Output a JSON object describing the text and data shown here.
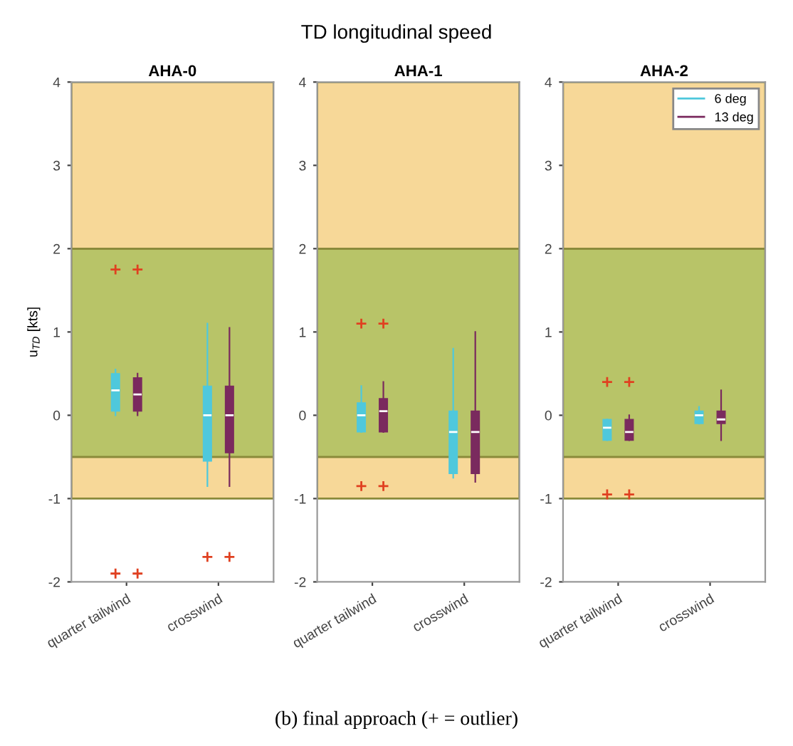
{
  "chart_data": [
    {
      "type": "box",
      "title": "AHA-0",
      "ylabel": "u$_{TD}$ [kts]",
      "annotations": [
        "TD longitudinal speed",
        "(b) final approach (+ = outlier)"
      ],
      "categories": [
        "quarter tailwind",
        "crosswind"
      ],
      "ylim": [
        -2,
        4
      ],
      "yticks": [
        -2,
        -1,
        0,
        1,
        2,
        3,
        4
      ],
      "bands": [
        {
          "axis": "y",
          "from": -1,
          "to": -0.5,
          "color": "#f7d898"
        },
        {
          "axis": "y",
          "from": -0.5,
          "to": 2,
          "color": "#b8c468"
        },
        {
          "axis": "y",
          "from": 2,
          "to": 4,
          "color": "#f7d898"
        }
      ],
      "series": [
        {
          "color": "#4fc8dc",
          "boxes": [
            {
              "low": 0.0,
              "q1": 0.05,
              "median": 0.3,
              "q3": 0.5,
              "high": 0.55,
              "outliers": [
                1.75,
                -1.9
              ]
            },
            {
              "low": -0.85,
              "q1": -0.55,
              "median": 0.0,
              "q3": 0.35,
              "high": 1.1,
              "outliers": [
                -1.7
              ]
            }
          ]
        },
        {
          "color": "#7a2a5e",
          "boxes": [
            {
              "low": 0.0,
              "q1": 0.05,
              "median": 0.25,
              "q3": 0.45,
              "high": 0.5,
              "outliers": [
                1.75,
                -1.9
              ]
            },
            {
              "low": -0.85,
              "q1": -0.45,
              "median": 0.0,
              "q3": 0.35,
              "high": 1.05,
              "outliers": [
                -1.7
              ]
            }
          ]
        }
      ]
    },
    {
      "type": "box",
      "title": "AHA-1",
      "categories": [
        "quarter tailwind",
        "crosswind"
      ],
      "ylim": [
        -2,
        4
      ],
      "yticks": [
        -2,
        -1,
        0,
        1,
        2,
        3,
        4
      ],
      "bands": [
        {
          "axis": "y",
          "from": -1,
          "to": -0.5,
          "color": "#f7d898"
        },
        {
          "axis": "y",
          "from": -0.5,
          "to": 2,
          "color": "#b8c468"
        },
        {
          "axis": "y",
          "from": 2,
          "to": 4,
          "color": "#f7d898"
        }
      ],
      "series": [
        {
          "color": "#4fc8dc",
          "boxes": [
            {
              "low": -0.2,
              "q1": -0.2,
              "median": 0.0,
              "q3": 0.15,
              "high": 0.35,
              "outliers": [
                1.1,
                -0.85
              ]
            },
            {
              "low": -0.75,
              "q1": -0.7,
              "median": -0.2,
              "q3": 0.05,
              "high": 0.8
            }
          ]
        },
        {
          "color": "#7a2a5e",
          "boxes": [
            {
              "low": -0.2,
              "q1": -0.2,
              "median": 0.05,
              "q3": 0.2,
              "high": 0.4,
              "outliers": [
                1.1,
                -0.85
              ]
            },
            {
              "low": -0.8,
              "q1": -0.7,
              "median": -0.2,
              "q3": 0.05,
              "high": 1.0
            }
          ]
        }
      ]
    },
    {
      "type": "box",
      "title": "AHA-2",
      "categories": [
        "quarter tailwind",
        "crosswind"
      ],
      "ylim": [
        -2,
        4
      ],
      "yticks": [
        -2,
        -1,
        0,
        1,
        2,
        3,
        4
      ],
      "legend": "top right",
      "bands": [
        {
          "axis": "y",
          "from": -1,
          "to": -0.5,
          "color": "#f7d898"
        },
        {
          "axis": "y",
          "from": -0.5,
          "to": 2,
          "color": "#b8c468"
        },
        {
          "axis": "y",
          "from": 2,
          "to": 4,
          "color": "#f7d898"
        }
      ],
      "series": [
        {
          "name": "6 deg",
          "color": "#4fc8dc",
          "boxes": [
            {
              "low": -0.3,
              "q1": -0.3,
              "median": -0.15,
              "q3": -0.05,
              "high": -0.05,
              "outliers": [
                0.4,
                -0.95
              ]
            },
            {
              "low": -0.1,
              "q1": -0.1,
              "median": 0.0,
              "q3": 0.05,
              "high": 0.1
            }
          ]
        },
        {
          "name": "13 deg",
          "color": "#7a2a5e",
          "boxes": [
            {
              "low": -0.3,
              "q1": -0.3,
              "median": -0.2,
              "q3": -0.05,
              "high": 0.0,
              "outliers": [
                0.4,
                -0.95
              ]
            },
            {
              "low": -0.3,
              "q1": -0.1,
              "median": -0.05,
              "q3": 0.05,
              "high": 0.3
            }
          ]
        }
      ]
    }
  ]
}
